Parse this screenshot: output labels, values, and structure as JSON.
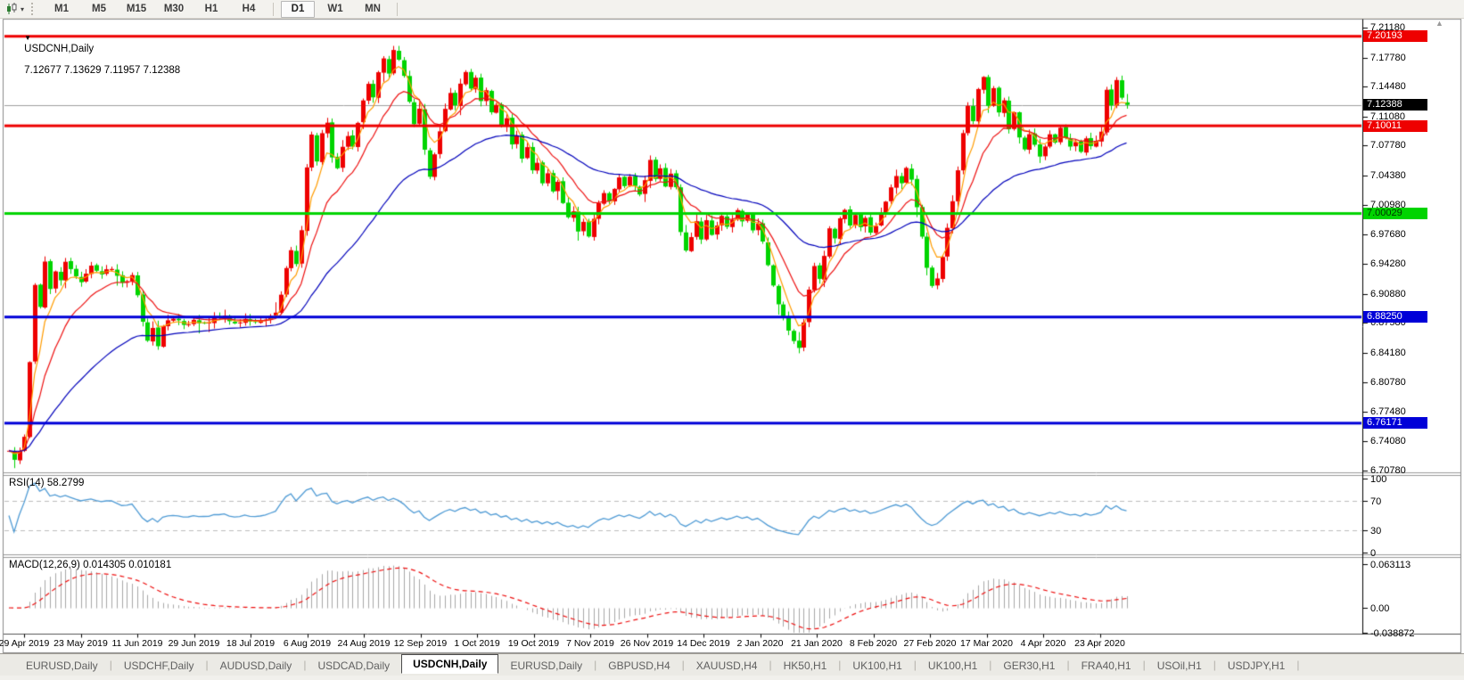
{
  "toolbar": {
    "timeframes": [
      "M1",
      "M5",
      "M15",
      "M30",
      "H1",
      "H4",
      "D1",
      "W1",
      "MN"
    ],
    "active_timeframe": "D1",
    "chart_type_icon": "candlestick-chart-icon",
    "dropdown_arrow": "▾"
  },
  "chart": {
    "collapse_arrow": "▼",
    "title": "USDCNH,Daily",
    "ohlc_text": "7.12677 7.13629 7.11957 7.12388"
  },
  "chart_data": {
    "type": "candlestick",
    "symbol": "USDCNH",
    "timeframe": "Daily",
    "last_ohlc": {
      "open": 7.12677,
      "high": 7.13629,
      "low": 7.11957,
      "close": 7.12388
    },
    "current_price": 7.12388,
    "current_price_label": "7.12388",
    "up_color": "#ee0000",
    "down_color": "#00d400",
    "current_line_color": "#a0a0a0",
    "price_axis_labels": [
      "7.21180",
      "7.17780",
      "7.14480",
      "7.11080",
      "7.07780",
      "7.04380",
      "7.00980",
      "6.97680",
      "6.94280",
      "6.90880",
      "6.87580",
      "6.84180",
      "6.80780",
      "6.77480",
      "6.74080",
      "6.70780"
    ],
    "levels": [
      {
        "label": "7.20193",
        "price": 7.20193,
        "color": "#ee0000",
        "text_color": "#ffffff",
        "width": 3
      },
      {
        "label": "7.10011",
        "price": 7.10011,
        "color": "#ee0000",
        "text_color": "#ffffff",
        "width": 3
      },
      {
        "label": "7.00029",
        "price": 7.00029,
        "color": "#00d400",
        "text_color": "#003300",
        "width": 3
      },
      {
        "label": "6.88250",
        "price": 6.8825,
        "color": "#0000d8",
        "text_color": "#ffffff",
        "width": 3
      },
      {
        "label": "6.76171",
        "price": 6.76171,
        "color": "#0000d8",
        "text_color": "#ffffff",
        "width": 3
      }
    ],
    "moving_averages": [
      {
        "period": 5,
        "color": "#ff9c00"
      },
      {
        "period": 12,
        "color": "#ee1111"
      },
      {
        "period": 40,
        "color": "#0000bb"
      }
    ],
    "date_ticks": [
      "29 Apr 2019",
      "23 May 2019",
      "11 Jun 2019",
      "29 Jun 2019",
      "18 Jul 2019",
      "6 Aug 2019",
      "24 Aug 2019",
      "12 Sep 2019",
      "1 Oct 2019",
      "19 Oct 2019",
      "7 Nov 2019",
      "26 Nov 2019",
      "14 Dec 2019",
      "2 Jan 2020",
      "21 Jan 2020",
      "8 Feb 2020",
      "27 Feb 2020",
      "17 Mar 2020",
      "4 Apr 2020",
      "23 Apr 2020"
    ],
    "bars_total": 219,
    "close_path_anchors": [
      [
        0,
        6.73
      ],
      [
        1,
        6.722
      ],
      [
        2,
        6.731
      ],
      [
        3,
        6.748
      ],
      [
        4,
        6.83
      ],
      [
        5,
        6.92
      ],
      [
        6,
        6.895
      ],
      [
        7,
        6.946
      ],
      [
        8,
        6.916
      ],
      [
        9,
        6.932
      ],
      [
        10,
        6.926
      ],
      [
        11,
        6.946
      ],
      [
        12,
        6.936
      ],
      [
        14,
        6.924
      ],
      [
        16,
        6.941
      ],
      [
        18,
        6.931
      ],
      [
        20,
        6.939
      ],
      [
        22,
        6.921
      ],
      [
        24,
        6.929
      ],
      [
        25,
        6.906
      ],
      [
        26,
        6.876
      ],
      [
        27,
        6.855
      ],
      [
        28,
        6.869
      ],
      [
        29,
        6.851
      ],
      [
        30,
        6.872
      ],
      [
        32,
        6.881
      ],
      [
        34,
        6.872
      ],
      [
        36,
        6.881
      ],
      [
        38,
        6.874
      ],
      [
        40,
        6.88
      ],
      [
        42,
        6.883
      ],
      [
        44,
        6.875
      ],
      [
        46,
        6.881
      ],
      [
        48,
        6.877
      ],
      [
        50,
        6.882
      ],
      [
        52,
        6.886
      ],
      [
        53,
        6.908
      ],
      [
        54,
        6.938
      ],
      [
        55,
        6.96
      ],
      [
        56,
        6.943
      ],
      [
        57,
        6.98
      ],
      [
        58,
        7.055
      ],
      [
        59,
        7.09
      ],
      [
        60,
        7.058
      ],
      [
        61,
        7.094
      ],
      [
        62,
        7.104
      ],
      [
        63,
        7.066
      ],
      [
        64,
        7.052
      ],
      [
        65,
        7.074
      ],
      [
        66,
        7.09
      ],
      [
        67,
        7.078
      ],
      [
        68,
        7.104
      ],
      [
        69,
        7.13
      ],
      [
        70,
        7.15
      ],
      [
        71,
        7.134
      ],
      [
        72,
        7.16
      ],
      [
        73,
        7.176
      ],
      [
        74,
        7.16
      ],
      [
        75,
        7.185
      ],
      [
        76,
        7.174
      ],
      [
        77,
        7.158
      ],
      [
        78,
        7.126
      ],
      [
        79,
        7.104
      ],
      [
        80,
        7.12
      ],
      [
        81,
        7.074
      ],
      [
        82,
        7.044
      ],
      [
        83,
        7.066
      ],
      [
        84,
        7.092
      ],
      [
        85,
        7.118
      ],
      [
        86,
        7.138
      ],
      [
        87,
        7.122
      ],
      [
        88,
        7.148
      ],
      [
        89,
        7.16
      ],
      [
        90,
        7.144
      ],
      [
        91,
        7.154
      ],
      [
        92,
        7.13
      ],
      [
        93,
        7.14
      ],
      [
        94,
        7.114
      ],
      [
        95,
        7.124
      ],
      [
        96,
        7.098
      ],
      [
        97,
        7.11
      ],
      [
        98,
        7.08
      ],
      [
        99,
        7.09
      ],
      [
        100,
        7.064
      ],
      [
        101,
        7.074
      ],
      [
        102,
        7.048
      ],
      [
        103,
        7.06
      ],
      [
        104,
        7.034
      ],
      [
        105,
        7.046
      ],
      [
        106,
        7.024
      ],
      [
        107,
        7.036
      ],
      [
        108,
        7.01
      ],
      [
        109,
        6.994
      ],
      [
        110,
        7.004
      ],
      [
        111,
        6.978
      ],
      [
        112,
        6.99
      ],
      [
        113,
        6.974
      ],
      [
        114,
        6.994
      ],
      [
        115,
        7.01
      ],
      [
        116,
        7.024
      ],
      [
        117,
        7.014
      ],
      [
        118,
        7.03
      ],
      [
        119,
        7.04
      ],
      [
        120,
        7.03
      ],
      [
        121,
        7.044
      ],
      [
        122,
        7.032
      ],
      [
        123,
        7.022
      ],
      [
        124,
        7.038
      ],
      [
        125,
        7.06
      ],
      [
        126,
        7.04
      ],
      [
        127,
        7.05
      ],
      [
        128,
        7.032
      ],
      [
        129,
        7.044
      ],
      [
        130,
        7.03
      ],
      [
        131,
        6.98
      ],
      [
        132,
        6.956
      ],
      [
        133,
        6.974
      ],
      [
        134,
        6.99
      ],
      [
        135,
        6.97
      ],
      [
        136,
        6.992
      ],
      [
        137,
        6.976
      ],
      [
        138,
        6.988
      ],
      [
        139,
        6.998
      ],
      [
        140,
        6.984
      ],
      [
        141,
        6.994
      ],
      [
        142,
        7.004
      ],
      [
        143,
        6.99
      ],
      [
        144,
        6.998
      ],
      [
        145,
        6.98
      ],
      [
        146,
        6.99
      ],
      [
        147,
        6.968
      ],
      [
        148,
        6.942
      ],
      [
        149,
        6.918
      ],
      [
        150,
        6.898
      ],
      [
        151,
        6.882
      ],
      [
        152,
        6.866
      ],
      [
        153,
        6.854
      ],
      [
        154,
        6.846
      ],
      [
        155,
        6.874
      ],
      [
        156,
        6.914
      ],
      [
        157,
        6.94
      ],
      [
        158,
        6.924
      ],
      [
        159,
        6.954
      ],
      [
        160,
        6.984
      ],
      [
        161,
        6.974
      ],
      [
        162,
        6.994
      ],
      [
        163,
        7.004
      ],
      [
        164,
        6.988
      ],
      [
        165,
        6.998
      ],
      [
        166,
        6.984
      ],
      [
        167,
        6.994
      ],
      [
        168,
        6.978
      ],
      [
        169,
        6.988
      ],
      [
        170,
        7.0
      ],
      [
        171,
        7.014
      ],
      [
        172,
        7.03
      ],
      [
        173,
        7.044
      ],
      [
        174,
        7.036
      ],
      [
        175,
        7.05
      ],
      [
        176,
        7.04
      ],
      [
        177,
        7.006
      ],
      [
        178,
        6.974
      ],
      [
        179,
        6.94
      ],
      [
        180,
        6.918
      ],
      [
        181,
        6.928
      ],
      [
        182,
        6.95
      ],
      [
        183,
        6.984
      ],
      [
        184,
        7.014
      ],
      [
        185,
        7.05
      ],
      [
        186,
        7.094
      ],
      [
        187,
        7.124
      ],
      [
        188,
        7.104
      ],
      [
        189,
        7.144
      ],
      [
        190,
        7.154
      ],
      [
        191,
        7.124
      ],
      [
        192,
        7.144
      ],
      [
        193,
        7.114
      ],
      [
        194,
        7.13
      ],
      [
        195,
        7.098
      ],
      [
        196,
        7.114
      ],
      [
        197,
        7.088
      ],
      [
        198,
        7.074
      ],
      [
        199,
        7.092
      ],
      [
        200,
        7.078
      ],
      [
        201,
        7.064
      ],
      [
        202,
        7.078
      ],
      [
        203,
        7.092
      ],
      [
        204,
        7.082
      ],
      [
        205,
        7.096
      ],
      [
        206,
        7.086
      ],
      [
        207,
        7.074
      ],
      [
        208,
        7.08
      ],
      [
        209,
        7.07
      ],
      [
        210,
        7.084
      ],
      [
        211,
        7.078
      ],
      [
        212,
        7.084
      ],
      [
        213,
        7.094
      ],
      [
        214,
        7.14
      ],
      [
        215,
        7.124
      ],
      [
        216,
        7.152
      ],
      [
        217,
        7.13
      ],
      [
        218,
        7.1239
      ]
    ],
    "rsi": {
      "label": "RSI(14)",
      "value": "58.2799",
      "line_color": "#4f9bd5",
      "levels": [
        70,
        30
      ],
      "axis_labels": [
        "100",
        "70",
        "30",
        "0"
      ],
      "range": [
        0,
        100
      ]
    },
    "macd": {
      "label": "MACD(12,26,9)",
      "values": "0.014305 0.010181",
      "main": 0.014305,
      "signal": 0.010181,
      "hist_color": "#a8a8a8",
      "signal_color": "#ee1111",
      "axis_labels": [
        "0.063113",
        "0.00",
        "-0.038872"
      ],
      "axis_max": 0.063113,
      "axis_min": -0.038872
    }
  },
  "tabs": {
    "items": [
      "EURUSD,Daily",
      "USDCHF,Daily",
      "AUDUSD,Daily",
      "USDCAD,Daily",
      "USDCNH,Daily",
      "EURUSD,Daily",
      "GBPUSD,H4",
      "XAUUSD,H4",
      "HK50,H1",
      "UK100,H1",
      "UK100,H1",
      "GER30,H1",
      "FRA40,H1",
      "USOil,H1",
      "USDJPY,H1"
    ],
    "active_index": 4
  }
}
